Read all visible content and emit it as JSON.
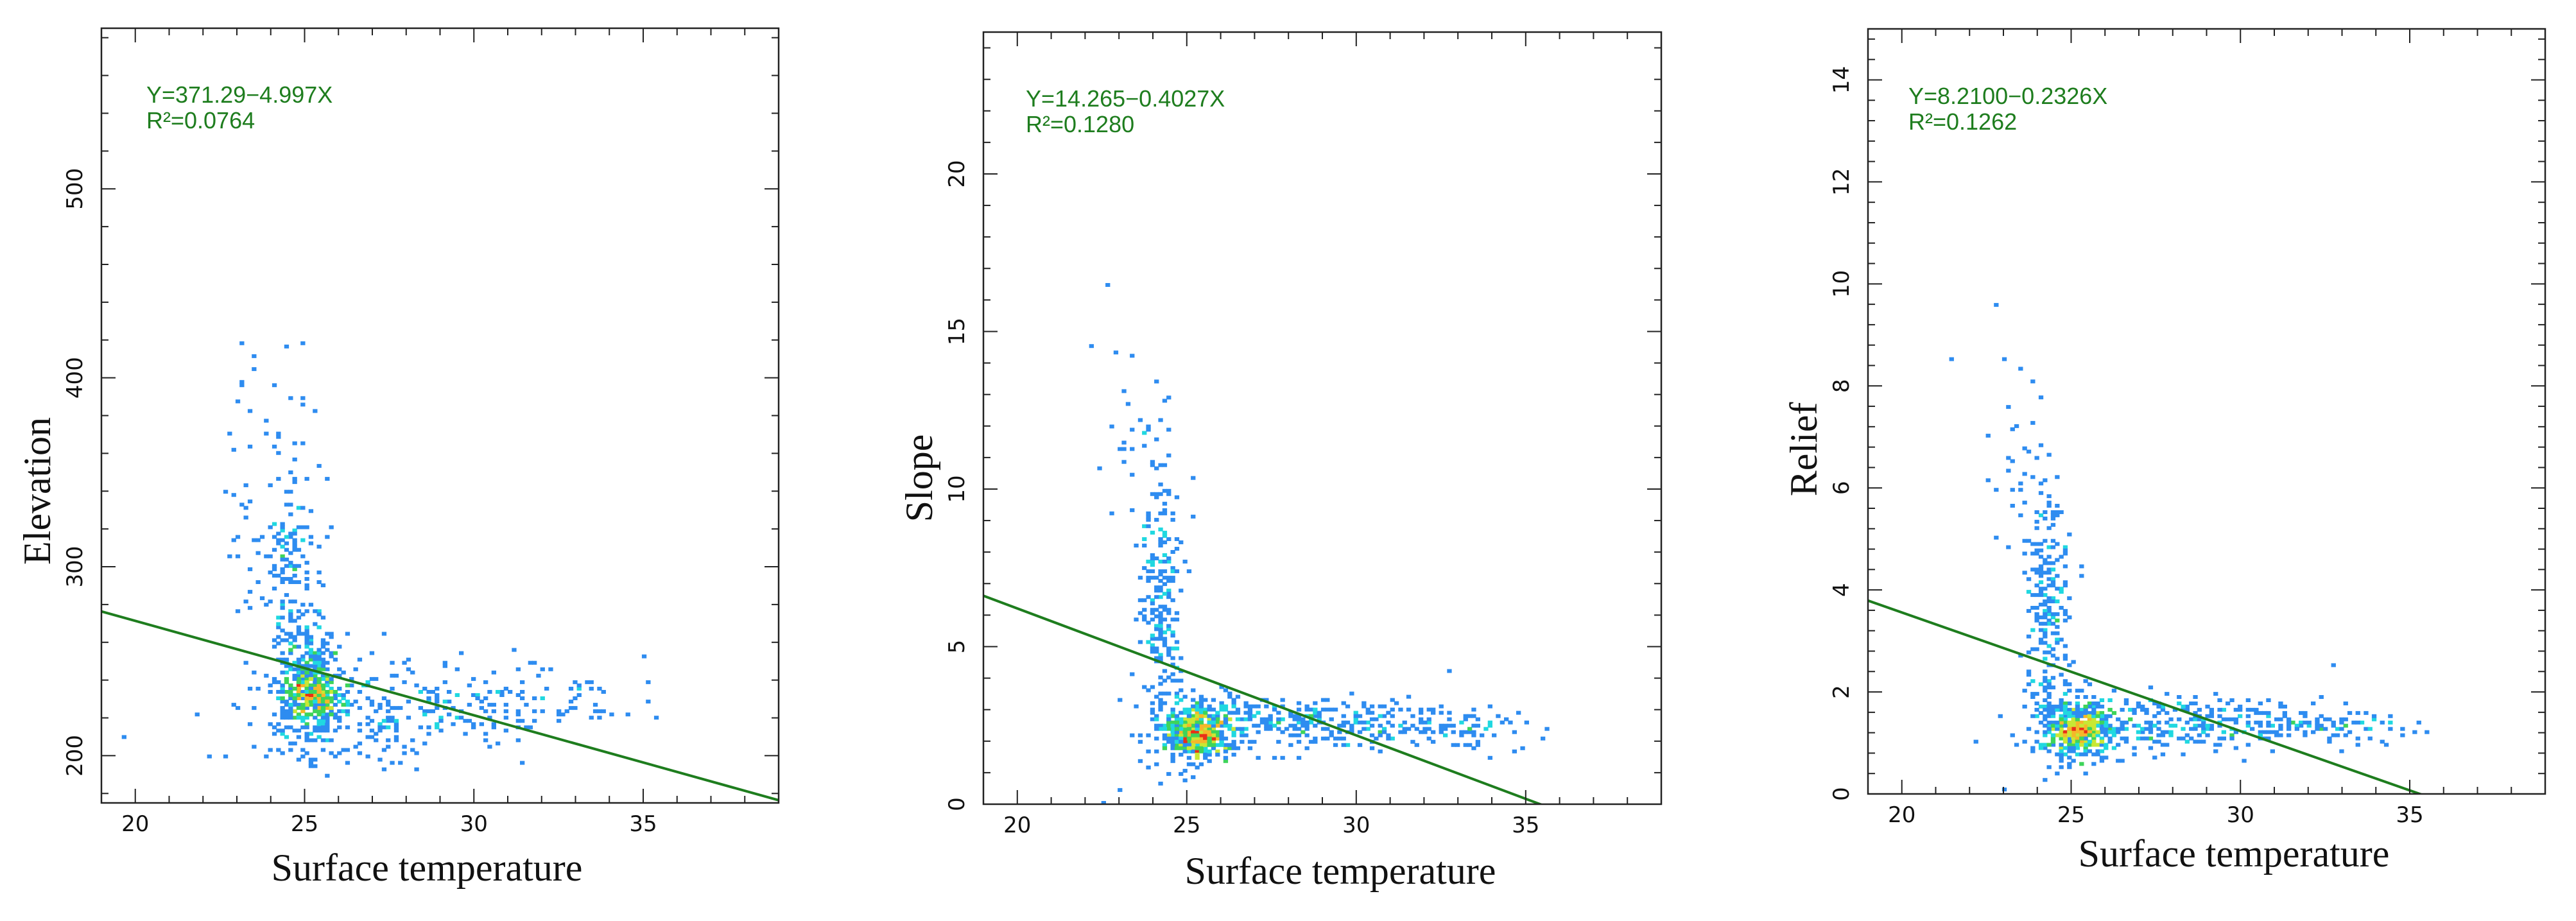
{
  "chart_data": [
    {
      "type": "heatmap",
      "xlabel": "Surface temperature",
      "ylabel": "Elevation",
      "xlim": [
        19,
        39
      ],
      "ylim": [
        175,
        585
      ],
      "xticks": [
        20,
        25,
        30,
        35
      ],
      "yticks": [
        200,
        300,
        400,
        500
      ],
      "regression": {
        "intercept": 371.29,
        "slope": -4.997
      },
      "annotation": [
        "Y=371.29−4.997X",
        "R²=0.0764"
      ],
      "density_clusters": [
        {
          "x": 25.2,
          "y": 235,
          "sx": 0.5,
          "sy": 16,
          "n": 380
        },
        {
          "x": 24.6,
          "y": 290,
          "sx": 0.45,
          "sy": 40,
          "n": 180
        },
        {
          "x": 28.0,
          "y": 225,
          "sx": 2.3,
          "sy": 13,
          "n": 240
        },
        {
          "x": 33.0,
          "y": 228,
          "sx": 1.2,
          "sy": 7,
          "n": 40
        },
        {
          "x": 23.4,
          "y": 345,
          "sx": 0.4,
          "sy": 35,
          "n": 30
        }
      ],
      "outliers": [
        [
          24.9,
          418
        ],
        [
          23.1,
          396
        ],
        [
          22.8,
          370
        ],
        [
          35.0,
          253
        ],
        [
          22.6,
          340
        ],
        [
          22.2,
          200
        ],
        [
          22.6,
          200
        ]
      ],
      "hotspot": {
        "x": 25.2,
        "y": 232
      },
      "colorscale": [
        "#1a14d9",
        "#2e8cf0",
        "#20d8e0",
        "#3ed45a",
        "#c8e834",
        "#f5b72a",
        "#e83018"
      ]
    },
    {
      "type": "heatmap",
      "xlabel": "Surface temperature",
      "ylabel": "Slope",
      "xlim": [
        19,
        39
      ],
      "ylim": [
        0,
        24.5
      ],
      "xticks": [
        20,
        25,
        30,
        35
      ],
      "yticks": [
        0,
        5,
        10,
        15,
        20
      ],
      "regression": {
        "intercept": 14.265,
        "slope": -0.4027
      },
      "annotation": [
        "Y=14.265−0.4027X",
        "R²=0.1280"
      ],
      "density_clusters": [
        {
          "x": 25.3,
          "y": 2.4,
          "sx": 0.6,
          "sy": 0.5,
          "n": 420
        },
        {
          "x": 24.2,
          "y": 6.5,
          "sx": 0.35,
          "sy": 2.2,
          "n": 220
        },
        {
          "x": 28.5,
          "y": 2.6,
          "sx": 2.3,
          "sy": 0.4,
          "n": 300
        },
        {
          "x": 33.0,
          "y": 2.4,
          "sx": 1.2,
          "sy": 0.3,
          "n": 60
        },
        {
          "x": 23.5,
          "y": 11.5,
          "sx": 0.6,
          "sy": 1.5,
          "n": 25
        }
      ],
      "outliers": [
        [
          22.7,
          16.5
        ],
        [
          22.2,
          14.5
        ],
        [
          23.4,
          14.2
        ],
        [
          22.9,
          14.3
        ],
        [
          32.8,
          4.2
        ],
        [
          23.0,
          0.5
        ],
        [
          22.5,
          0.1
        ]
      ],
      "hotspot": {
        "x": 25.3,
        "y": 2.2
      },
      "colorscale": [
        "#1a14d9",
        "#2e8cf0",
        "#20d8e0",
        "#3ed45a",
        "#c8e834",
        "#f5b72a",
        "#e83018"
      ]
    },
    {
      "type": "heatmap",
      "xlabel": "Surface temperature",
      "ylabel": "Relief",
      "xlim": [
        19,
        39
      ],
      "ylim": [
        0,
        15
      ],
      "xticks": [
        20,
        25,
        30,
        35
      ],
      "yticks": [
        0,
        2,
        4,
        6,
        8,
        10,
        12,
        14
      ],
      "regression": {
        "intercept": 8.21,
        "slope": -0.2326
      },
      "annotation": [
        "Y=8.2100−0.2326X",
        "R²=0.1262"
      ],
      "density_clusters": [
        {
          "x": 25.2,
          "y": 1.3,
          "sx": 0.6,
          "sy": 0.3,
          "n": 420
        },
        {
          "x": 24.3,
          "y": 3.6,
          "sx": 0.35,
          "sy": 1.2,
          "n": 220
        },
        {
          "x": 28.5,
          "y": 1.4,
          "sx": 2.3,
          "sy": 0.25,
          "n": 300
        },
        {
          "x": 33.0,
          "y": 1.3,
          "sx": 1.2,
          "sy": 0.2,
          "n": 60
        },
        {
          "x": 23.5,
          "y": 6.5,
          "sx": 0.5,
          "sy": 0.8,
          "n": 25
        }
      ],
      "outliers": [
        [
          22.8,
          9.6
        ],
        [
          21.5,
          8.5
        ],
        [
          23.0,
          8.5
        ],
        [
          23.2,
          7.6
        ],
        [
          32.8,
          2.5
        ],
        [
          22.2,
          1.0
        ],
        [
          23.0,
          0.1
        ]
      ],
      "hotspot": {
        "x": 25.2,
        "y": 1.25
      },
      "colorscale": [
        "#1a14d9",
        "#2e8cf0",
        "#20d8e0",
        "#3ed45a",
        "#c8e834",
        "#f5b72a",
        "#e83018"
      ]
    }
  ]
}
